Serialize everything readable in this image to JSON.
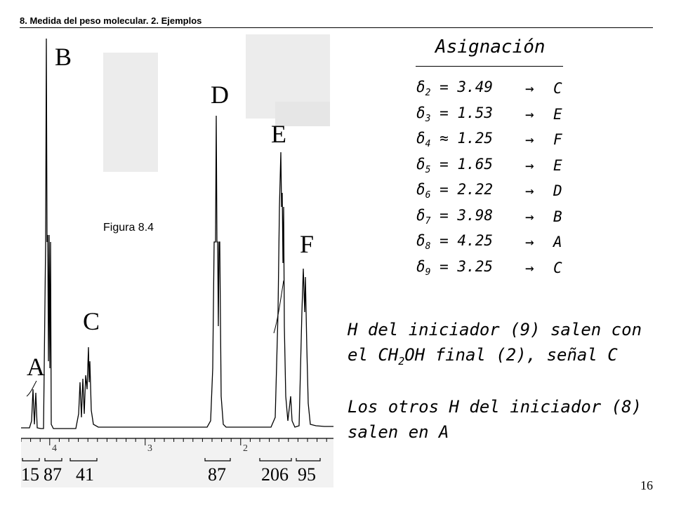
{
  "header": {
    "title": "8. Medida del peso molecular. 2. Ejemplos"
  },
  "figure": {
    "caption": "Figura 8.4",
    "peak_labels": [
      "A",
      "B",
      "C",
      "D",
      "E",
      "F"
    ],
    "integrals": [
      "15",
      "87",
      "41",
      "87",
      "206",
      "95"
    ],
    "ppm_ticks": [
      "4",
      "3",
      "2"
    ]
  },
  "assignment": {
    "title": "Asignación",
    "rows": [
      {
        "delta": "δ",
        "sub": "2",
        "rel": " = 3.49",
        "arrow": "→",
        "signal": "C"
      },
      {
        "delta": "δ",
        "sub": "3",
        "rel": " = 1.53",
        "arrow": "→",
        "signal": "E"
      },
      {
        "delta": "δ",
        "sub": "4",
        "rel": " ≈ 1.25",
        "arrow": "→",
        "signal": "F"
      },
      {
        "delta": "δ",
        "sub": "5",
        "rel": " = 1.65",
        "arrow": "→",
        "signal": "E"
      },
      {
        "delta": "δ",
        "sub": "6",
        "rel": " = 2.22",
        "arrow": "→",
        "signal": "D"
      },
      {
        "delta": "δ",
        "sub": "7",
        "rel": " = 3.98",
        "arrow": "→",
        "signal": "B"
      },
      {
        "delta": "δ",
        "sub": "8",
        "rel": " = 4.25",
        "arrow": "→",
        "signal": "A"
      },
      {
        "delta": "δ",
        "sub": "9",
        "rel": " = 3.25",
        "arrow": "→",
        "signal": "C"
      }
    ]
  },
  "notes": {
    "n1_l1": "H del iniciador (9) salen con",
    "n1_l2_a": "el CH",
    "n1_l2_sub": "2",
    "n1_l2_b": "OH final (2), señal C",
    "n2_l1": "Los otros H del iniciador (8)",
    "n2_l2": "salen en A"
  },
  "page_number": "16"
}
